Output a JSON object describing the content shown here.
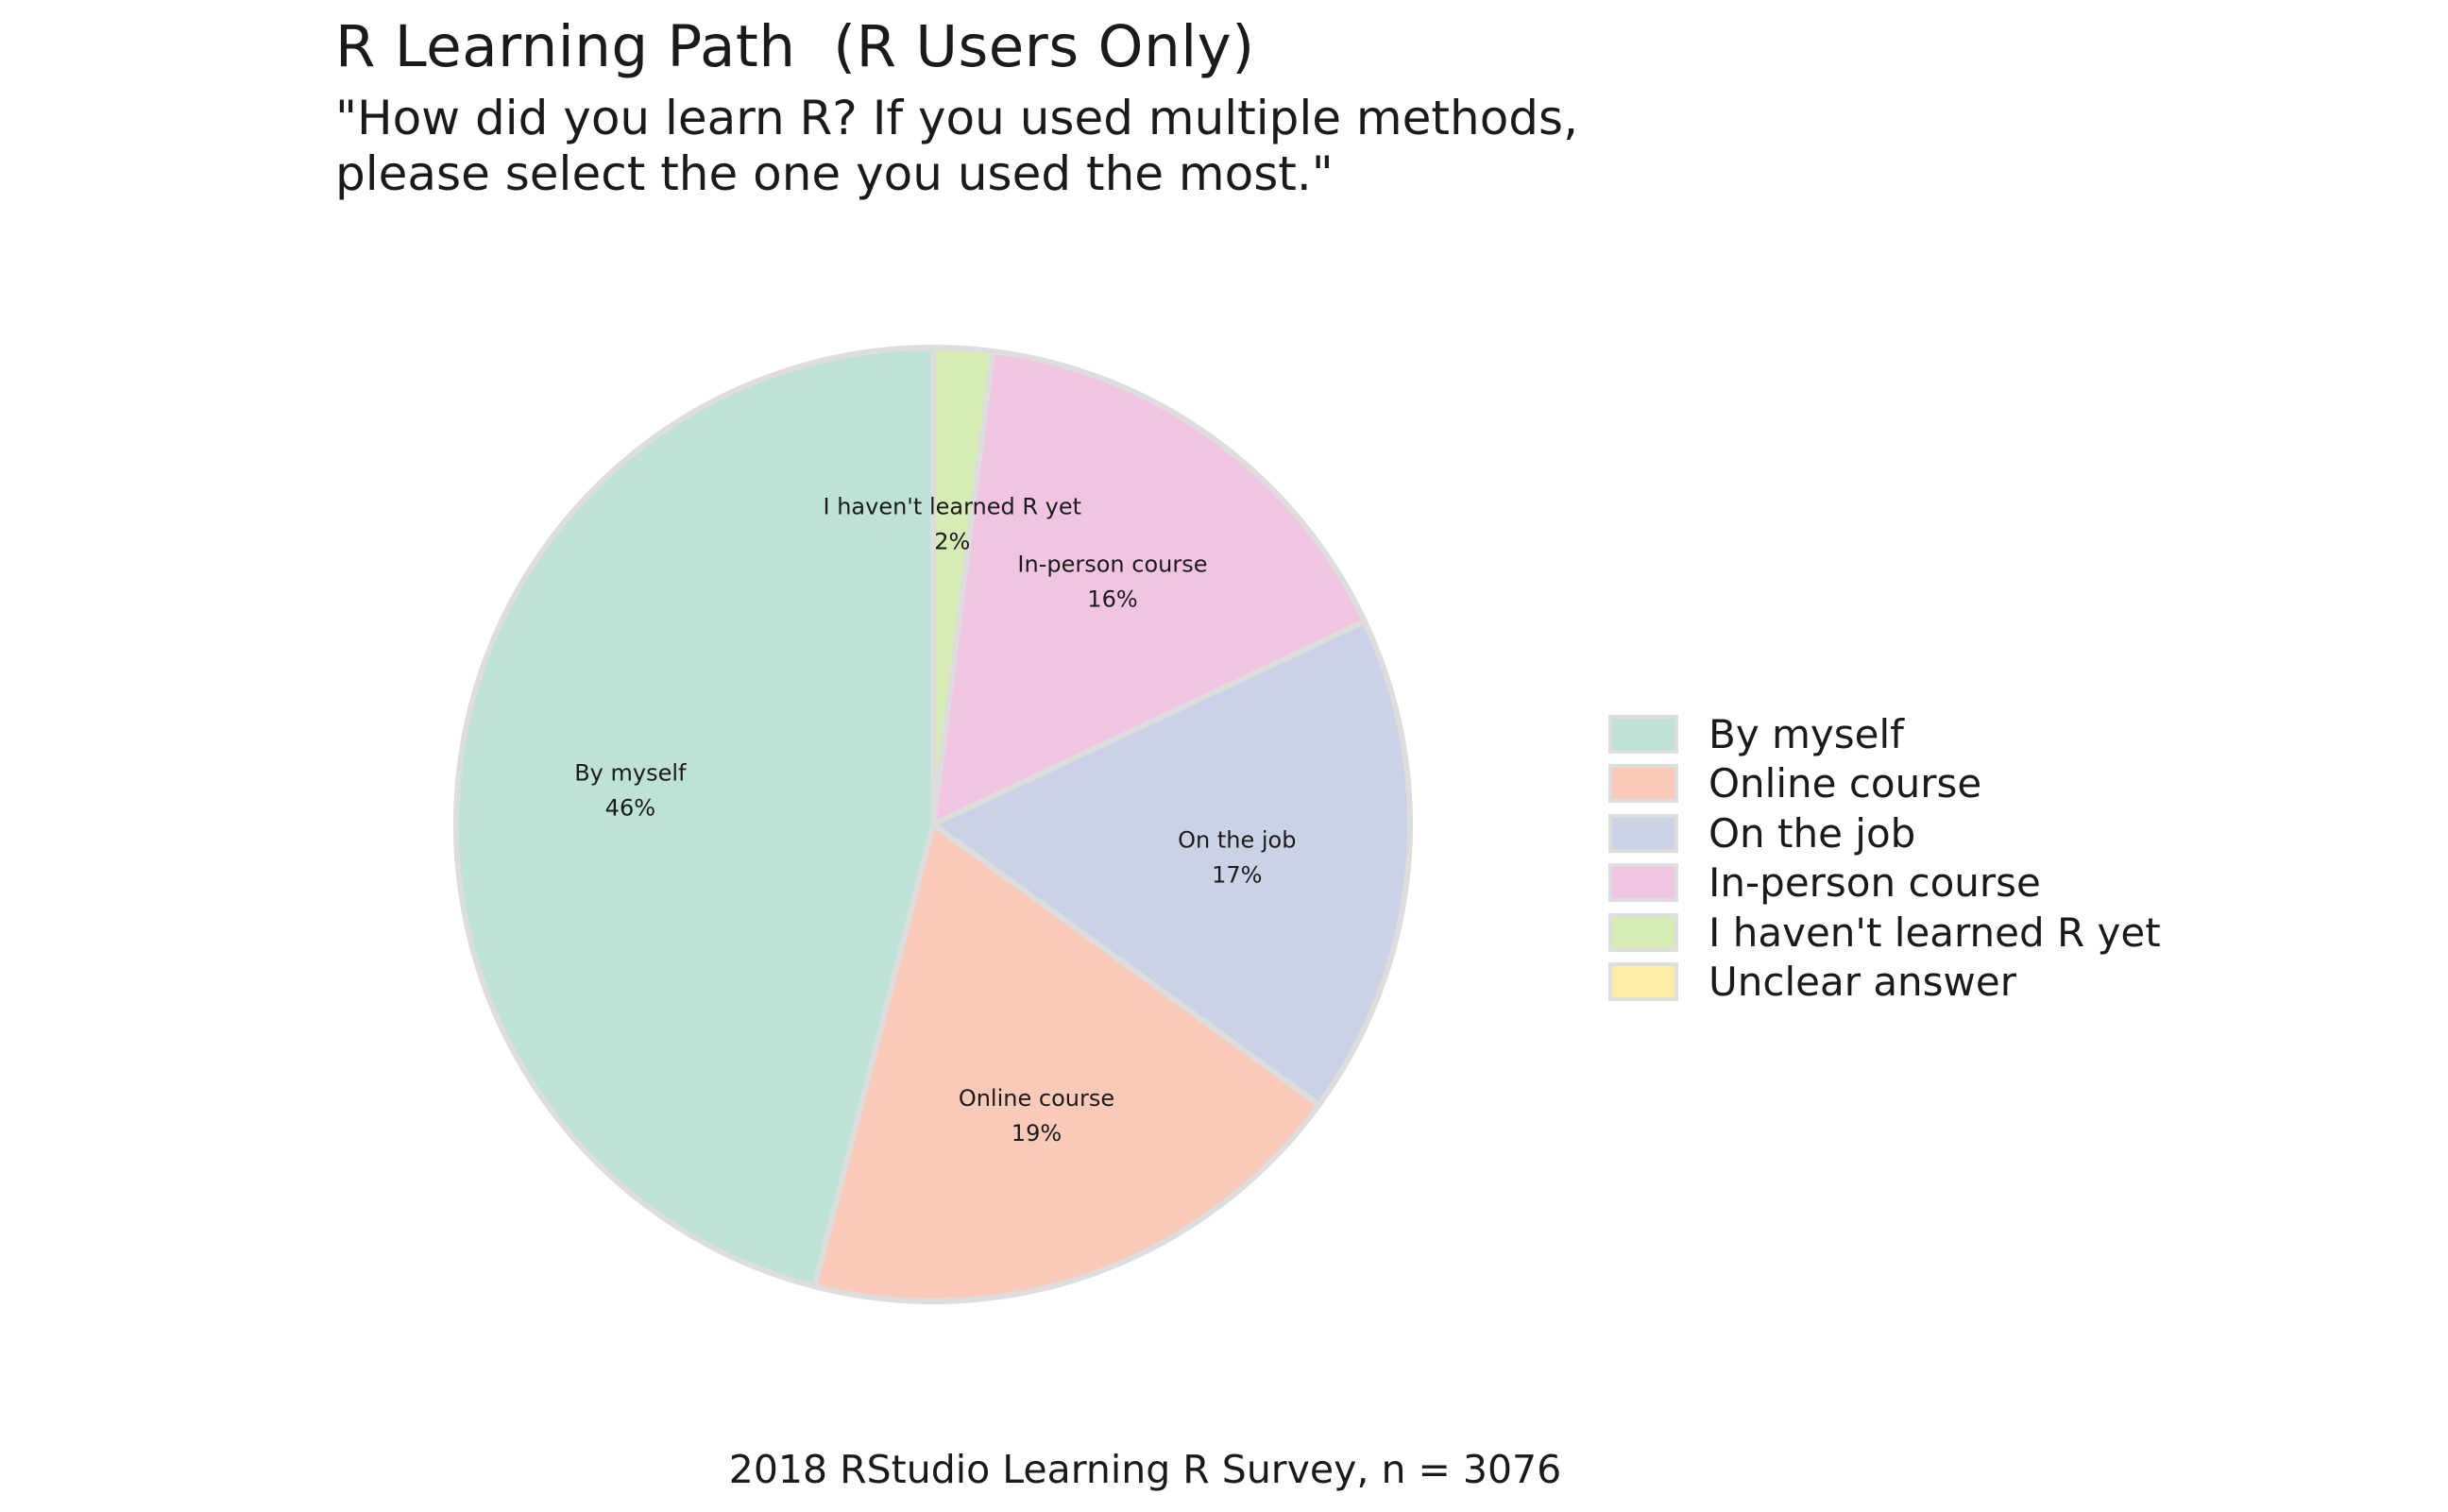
{
  "chart": {
    "title": "R Learning Path  (R Users Only)",
    "subtitle_lines": [
      "\"How did you learn R? If you used multiple methods,",
      "please select the one you used the most.\""
    ],
    "caption": "2018 RStudio Learning R Survey, n = 3076"
  },
  "chart_data": {
    "type": "pie",
    "title": "R Learning Path  (R Users Only)",
    "subtitle": "\"How did you learn R? If you used multiple methods, please select the one you used the most.\"",
    "caption": "2018 RStudio Learning R Survey, n = 3076",
    "slice_order": "clockwise from top",
    "border_color": "#dddddd",
    "slices": [
      {
        "name": "I haven't learned R yet",
        "value": 2,
        "label": "2%",
        "color": "#d7ebb4"
      },
      {
        "name": "In-person course",
        "value": 16,
        "label": "16%",
        "color": "#f1c5e2"
      },
      {
        "name": "On the job",
        "value": 17,
        "label": "17%",
        "color": "#cbd2e6"
      },
      {
        "name": "Online course",
        "value": 19,
        "label": "19%",
        "color": "#f9c9b9"
      },
      {
        "name": "By myself",
        "value": 46,
        "label": "46%",
        "color": "#bee2d5"
      }
    ],
    "legend": {
      "position": "right",
      "items": [
        {
          "label": "By myself",
          "color": "#bee2d5"
        },
        {
          "label": "Online course",
          "color": "#f9c9b9"
        },
        {
          "label": "On the job",
          "color": "#cbd2e6"
        },
        {
          "label": "In-person course",
          "color": "#f1c5e2"
        },
        {
          "label": "I haven't learned R yet",
          "color": "#d7ebb4"
        },
        {
          "label": "Unclear answer",
          "color": "#fdeca8"
        }
      ]
    }
  }
}
